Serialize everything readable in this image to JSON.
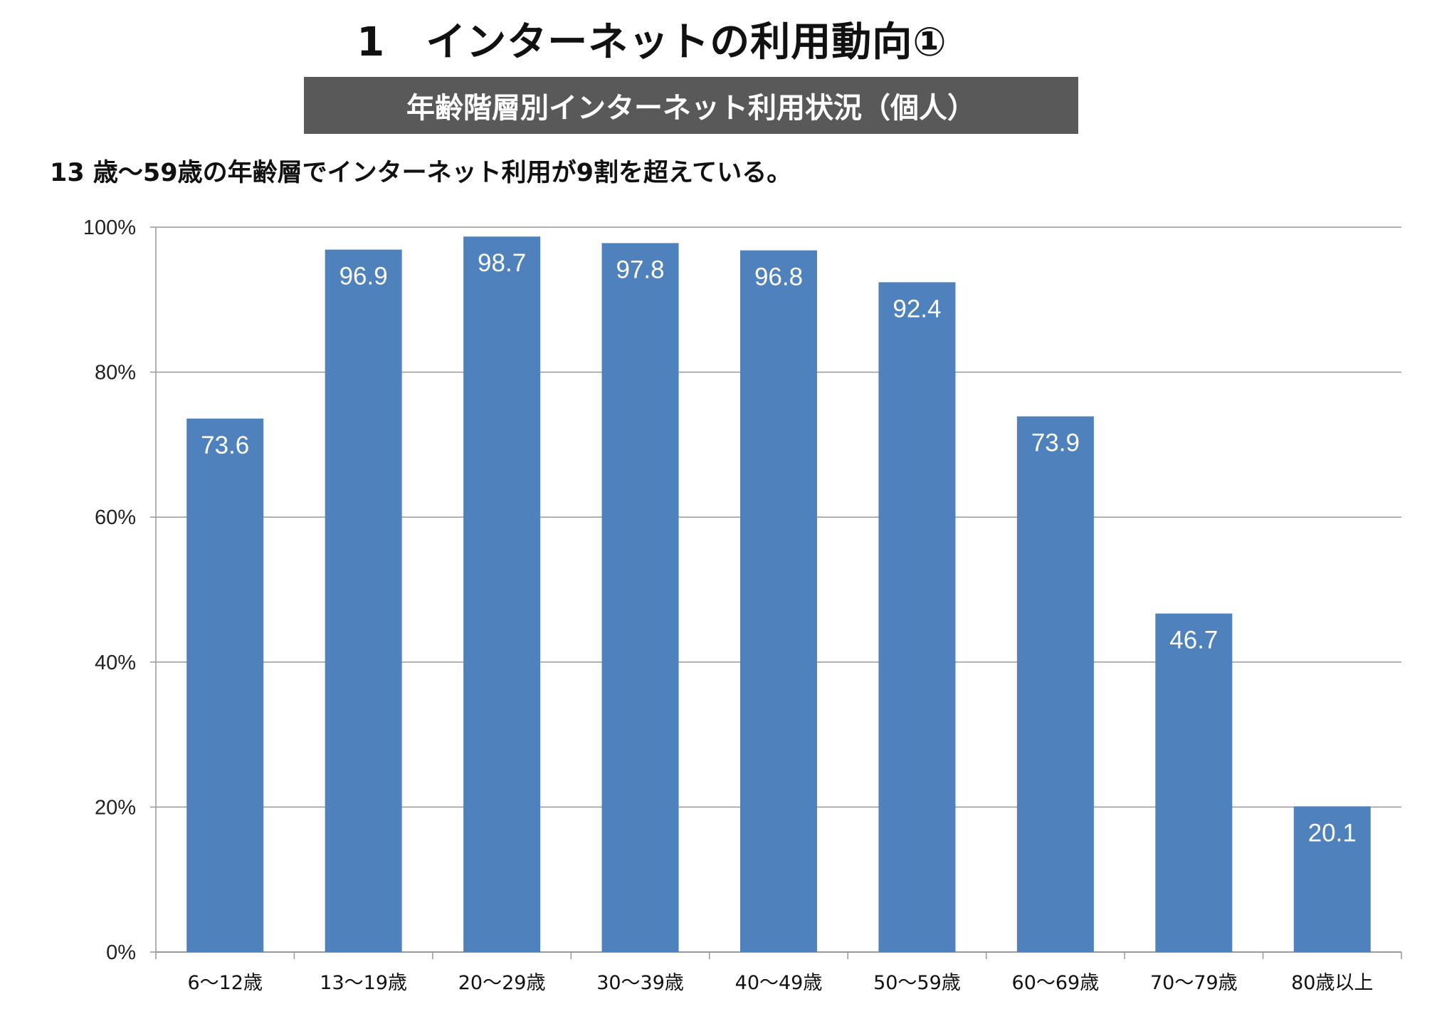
{
  "header": {
    "title": "1　インターネットの利用動向①",
    "banner": "年齢階層別インターネット利用状況（個人）",
    "subtitle": "13 歳～59歳の年齢層でインターネット利用が9割を超えている。"
  },
  "chart_data": {
    "type": "bar",
    "title": "年齢階層別インターネット利用状況（個人）",
    "categories": [
      "6～12歳",
      "13～19歳",
      "20～29歳",
      "30～39歳",
      "40～49歳",
      "50～59歳",
      "60～69歳",
      "70～79歳",
      "80歳以上"
    ],
    "values": [
      73.6,
      96.9,
      98.7,
      97.8,
      96.8,
      92.4,
      73.9,
      46.7,
      20.1
    ],
    "value_labels": [
      "73.6",
      "96.9",
      "98.7",
      "97.8",
      "96.8",
      "92.4",
      "73.9",
      "46.7",
      "20.1"
    ],
    "ylim": [
      0,
      100
    ],
    "yticks": [
      0,
      20,
      40,
      60,
      80,
      100
    ],
    "ytick_labels": [
      "0%",
      "20%",
      "40%",
      "60%",
      "80%",
      "100%"
    ],
    "xlabel": "",
    "ylabel": "",
    "grid": true,
    "legend": "none",
    "bar_color": "#4F81BD"
  }
}
